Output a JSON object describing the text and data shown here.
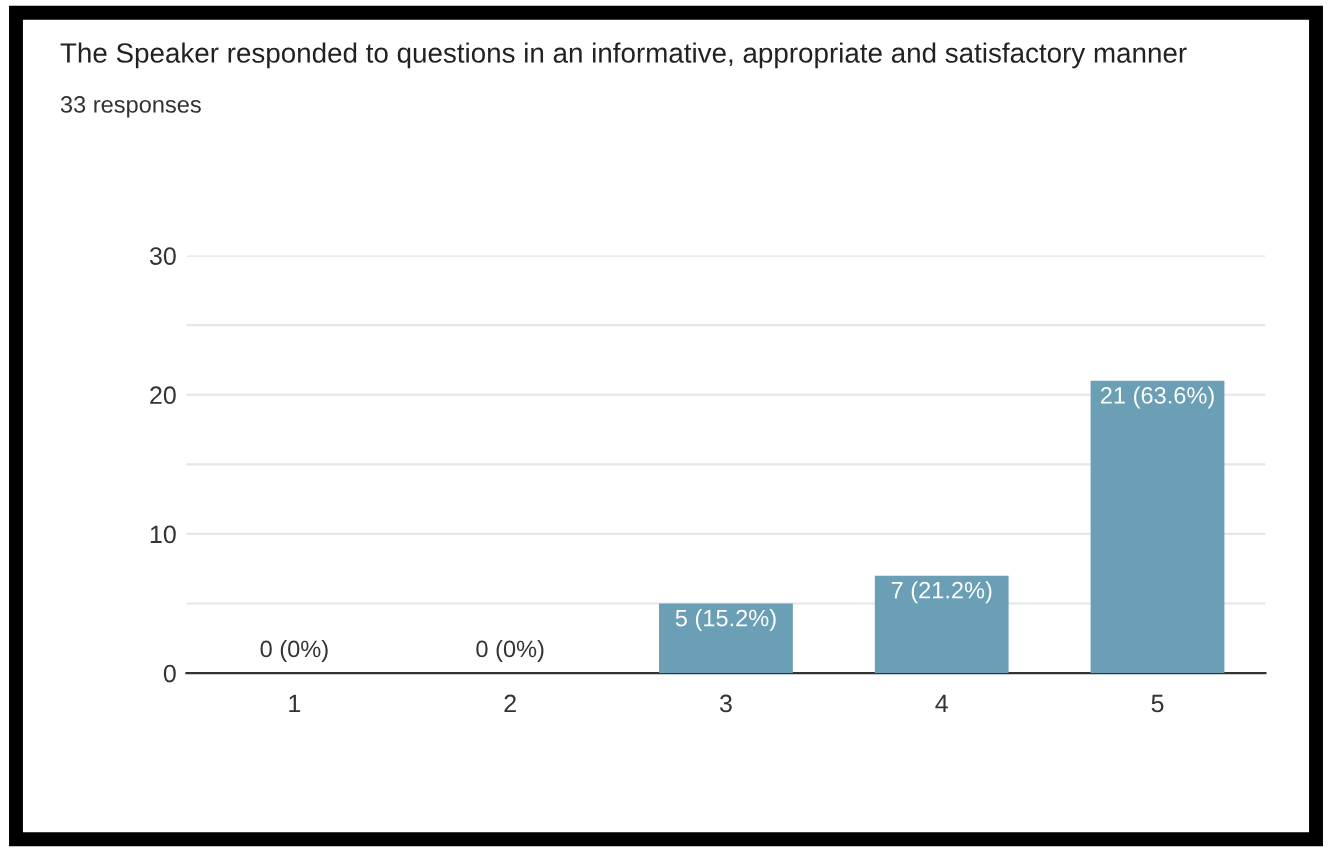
{
  "chart_data": {
    "type": "bar",
    "title": "The Speaker responded to questions in an informative, appropriate and satisfactory manner",
    "subtitle": "33 responses",
    "categories": [
      "1",
      "2",
      "3",
      "4",
      "5"
    ],
    "values": [
      0,
      0,
      5,
      7,
      21
    ],
    "value_labels": [
      "0 (0%)",
      "0 (0%)",
      "5 (15.2%)",
      "7 (21.2%)",
      "21 (63.6%)"
    ],
    "color": "#6a9fb6",
    "ylim": [
      0,
      30
    ],
    "yticks": [
      0,
      {
        "value": 5,
        "label": null
      },
      10,
      {
        "value": 15,
        "label": null
      },
      20,
      {
        "value": 25,
        "label": null
      },
      30
    ],
    "grid": "y"
  }
}
